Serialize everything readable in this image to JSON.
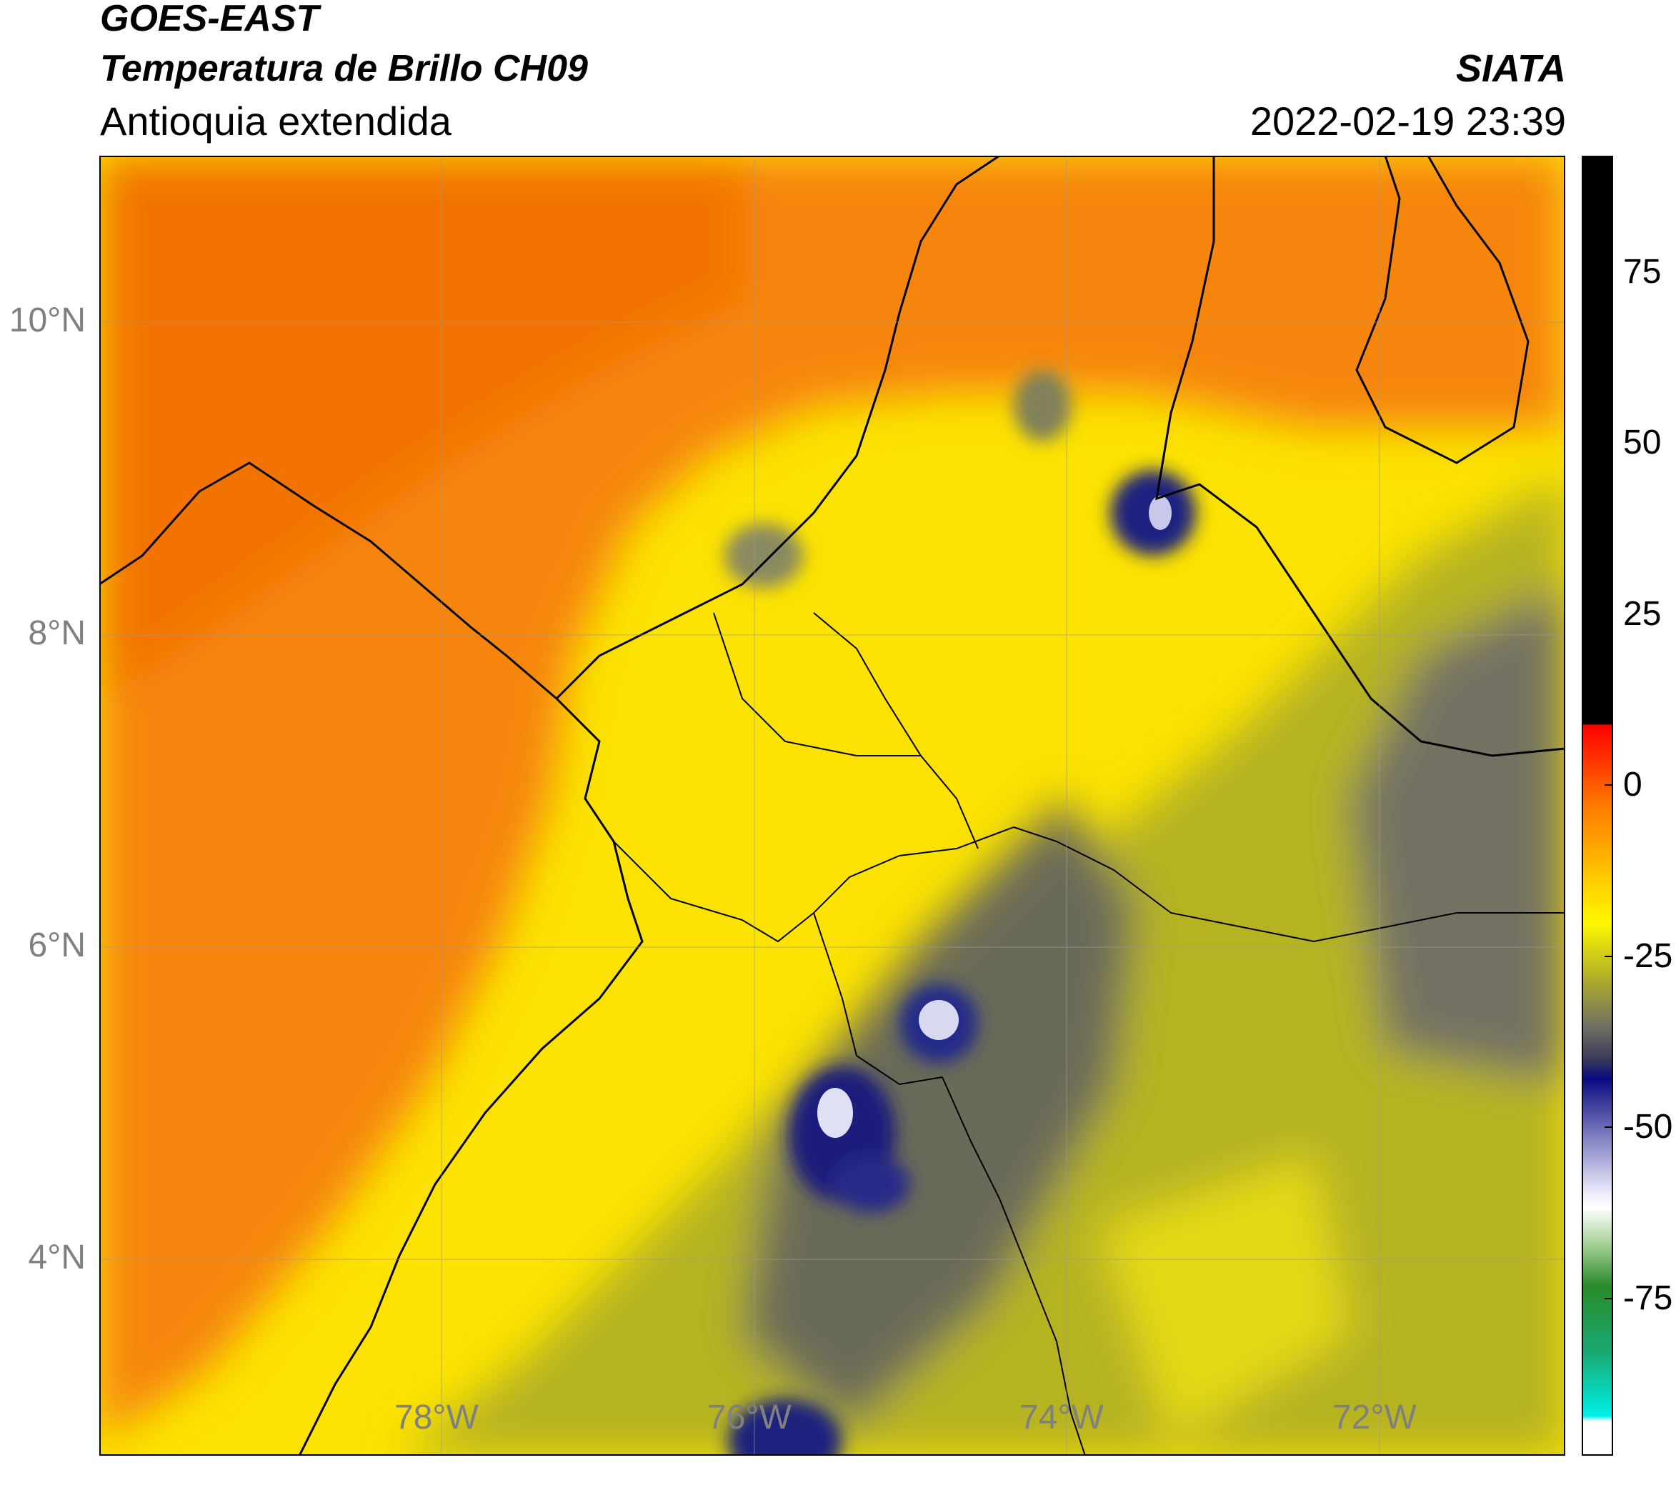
{
  "header": {
    "satellite": "GOES-EAST",
    "product": "Temperatura de Brillo CH09",
    "region": "Antioquia extendida",
    "agency": "SIATA",
    "datetime": "2022-02-19 23:39"
  },
  "map": {
    "type": "brightness temperature field",
    "lat_range": [
      2.8,
      11.1
    ],
    "lon_range": [
      -80.1,
      -70.8
    ],
    "lat_ticks": [
      "10°N",
      "8°N",
      "6°N",
      "4°N"
    ],
    "lon_ticks": [
      "78°W",
      "76°W",
      "74°W",
      "72°W"
    ],
    "gridlines": true
  },
  "colorbar": {
    "range": [
      -95,
      95
    ],
    "ticks": [
      "75",
      "50",
      "25",
      "0",
      "-25",
      "-50",
      "-75"
    ]
  },
  "colors": {
    "ocean_orange": "#f77b00",
    "warm_orange": "#ff9a00",
    "yellow": "#ffee00",
    "olive": "#b8b522",
    "gray_cloud": "#6a6a55",
    "deep_blue": "#1a1e7a",
    "cold_white": "#e8e8ff"
  }
}
